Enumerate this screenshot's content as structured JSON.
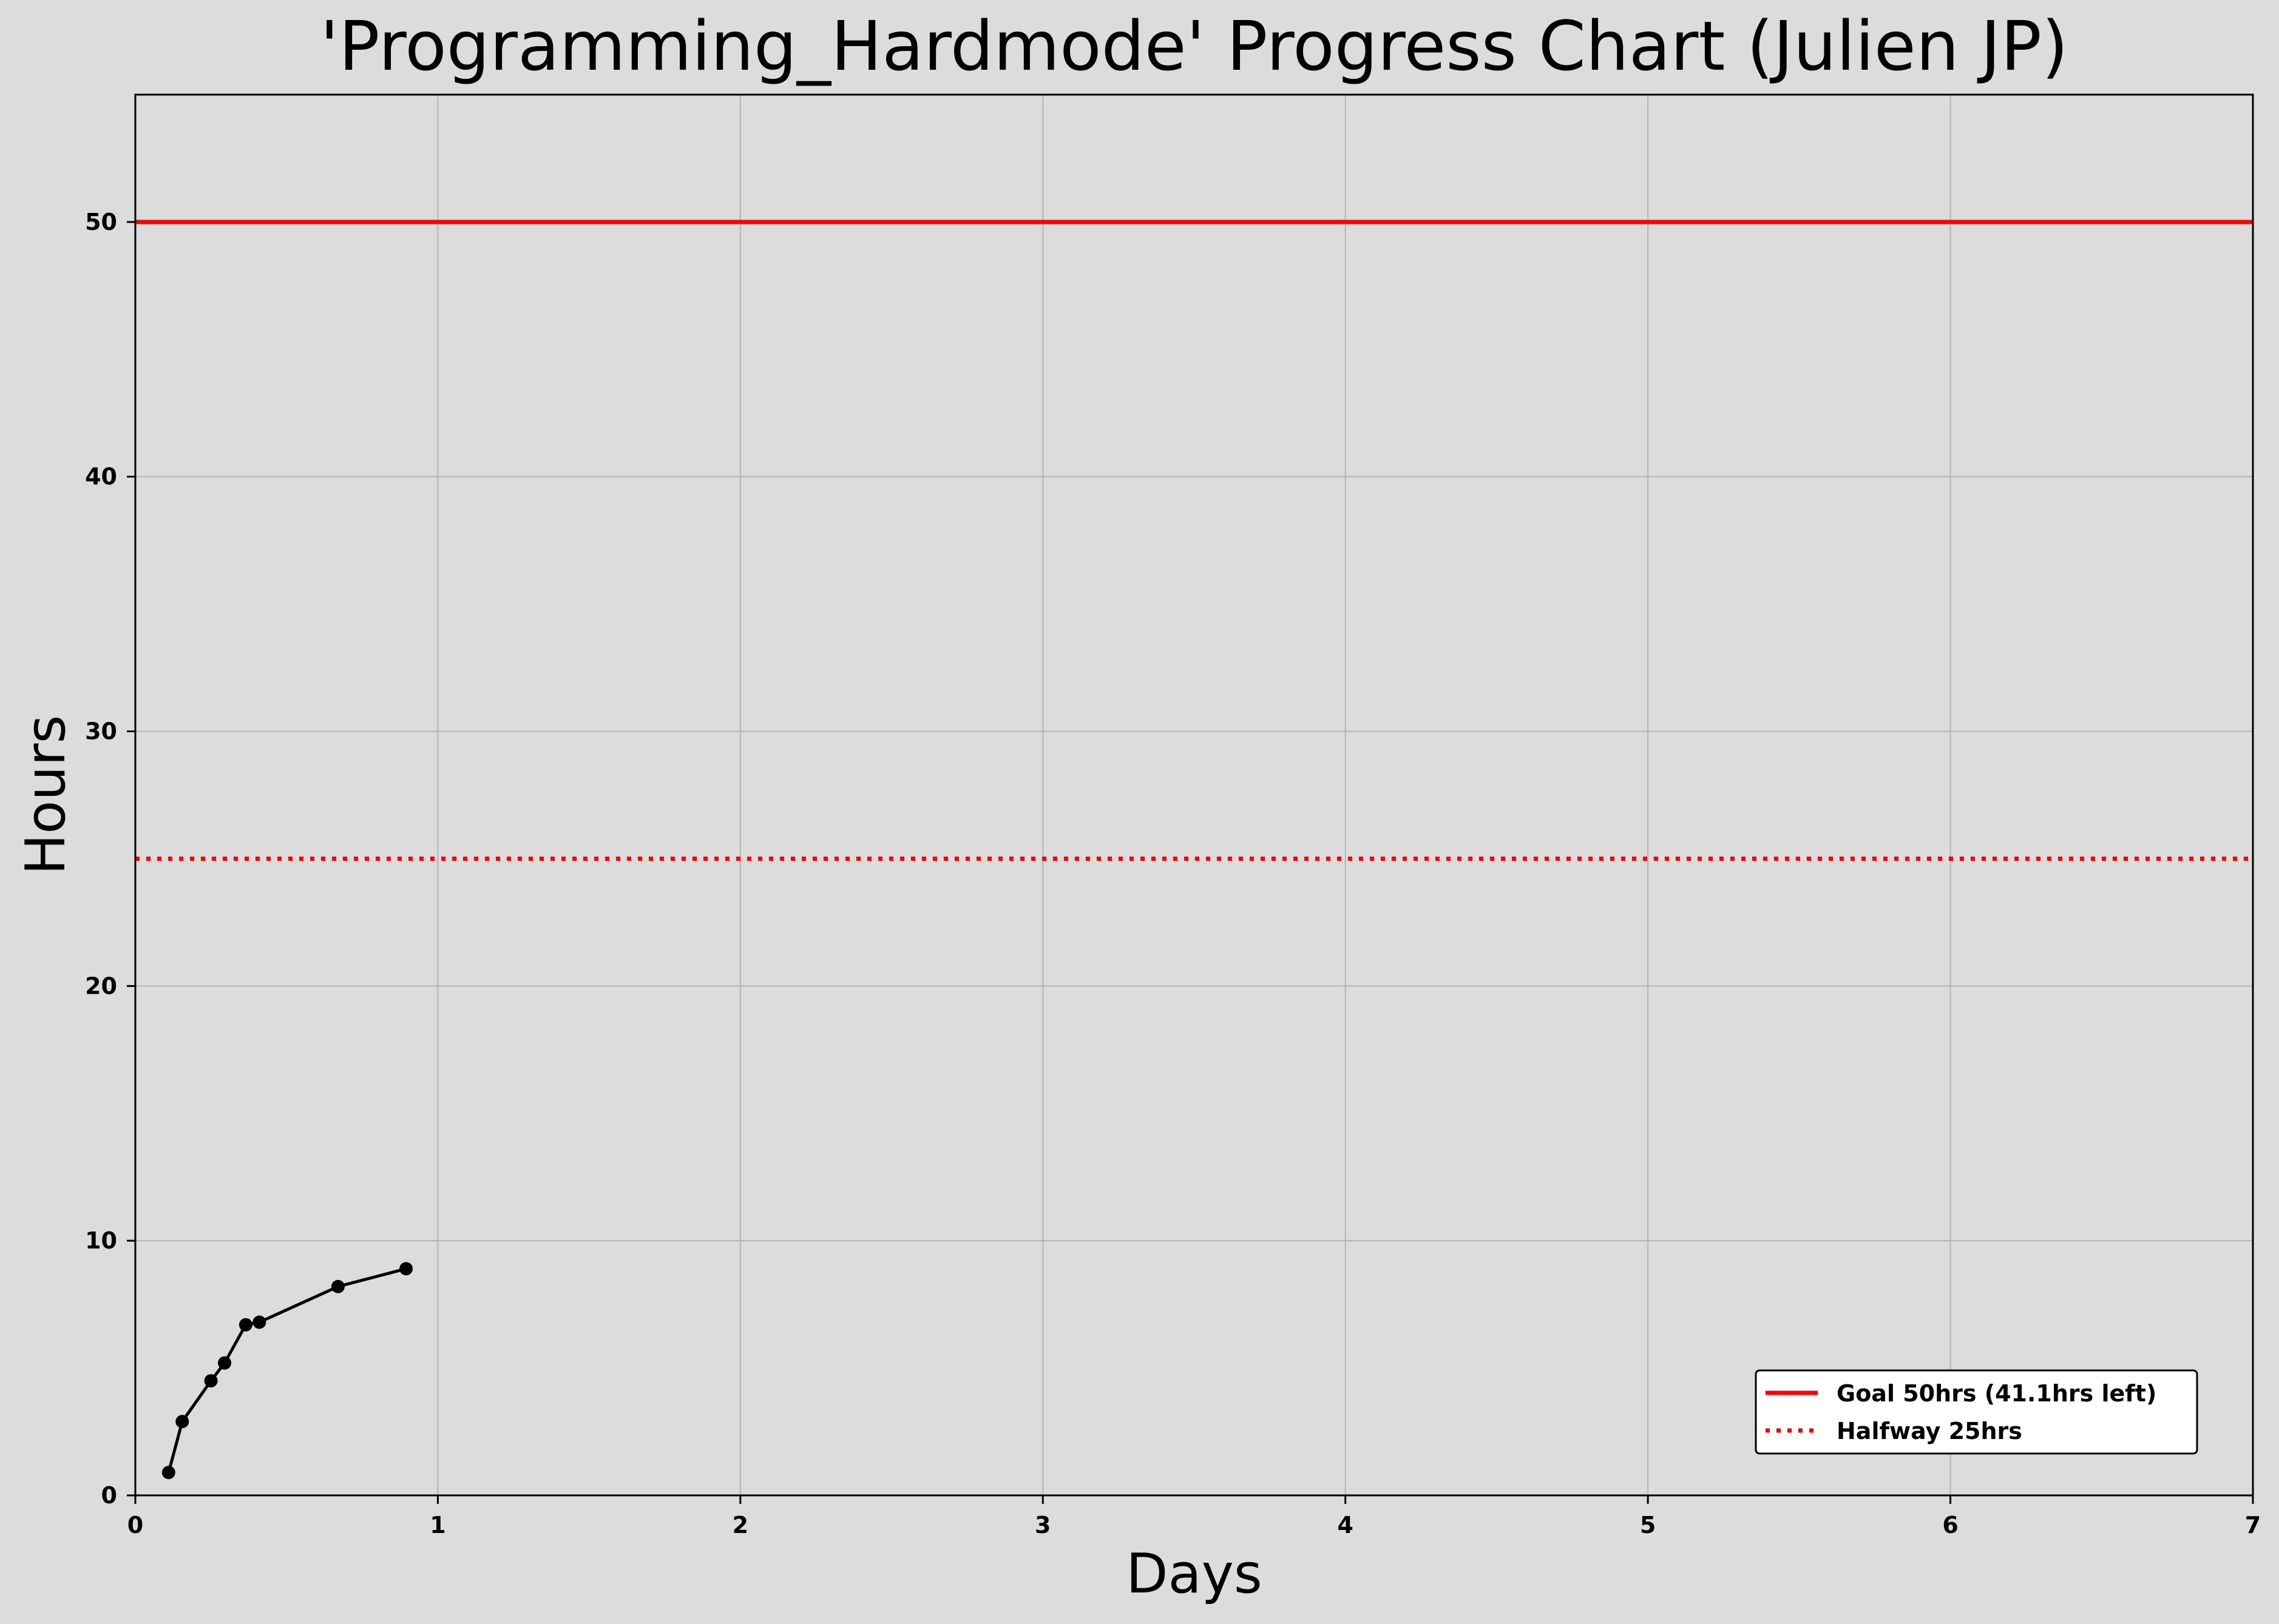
{
  "chart_data": {
    "type": "line",
    "title": "'Programming_Hardmode' Progress Chart (Julien JP)",
    "xlabel": "Days",
    "ylabel": "Hours",
    "xlim": [
      0,
      7
    ],
    "ylim": [
      0,
      55
    ],
    "x_ticks": [
      0,
      1,
      2,
      3,
      4,
      5,
      6,
      7
    ],
    "y_ticks": [
      0,
      10,
      20,
      30,
      40,
      50
    ],
    "grid": true,
    "legend_position": "bottom-right",
    "series": [
      {
        "color": "#000000",
        "marker": "circle",
        "x": [
          0.11,
          0.155,
          0.25,
          0.295,
          0.365,
          0.41,
          0.67,
          0.895
        ],
        "y": [
          0.9,
          2.9,
          4.5,
          5.2,
          6.7,
          6.8,
          8.2,
          8.9
        ]
      }
    ],
    "reference_lines": [
      {
        "name": "Goal 50hrs (41.1hrs left)",
        "y": 50,
        "color": "#ff0000",
        "style": "solid"
      },
      {
        "name": "Halfway 25hrs",
        "y": 25,
        "color": "#ff0000",
        "style": "dotted"
      }
    ],
    "colors": {
      "background": "#dcdcdc",
      "grid": "#b4b4b4",
      "axis": "#000000"
    }
  }
}
